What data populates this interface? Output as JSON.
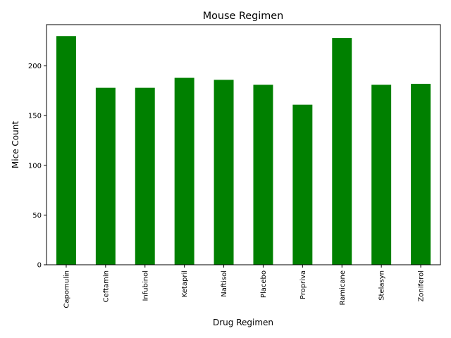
{
  "chart_data": {
    "type": "bar",
    "title": "Mouse Regimen",
    "xlabel": "Drug Regimen",
    "ylabel": "Mice Count",
    "categories": [
      "Capomulin",
      "Ceftamin",
      "Infubinol",
      "Ketapril",
      "Naftisol",
      "Placebo",
      "Propriva",
      "Ramicane",
      "Stelasyn",
      "Zoniferol"
    ],
    "values": [
      230,
      178,
      178,
      188,
      186,
      181,
      161,
      228,
      181,
      182
    ],
    "ylim": [
      0,
      241.5
    ],
    "yticks": [
      0,
      50,
      100,
      150,
      200
    ],
    "bar_color": "#008000",
    "grid": false,
    "legend": "none"
  }
}
